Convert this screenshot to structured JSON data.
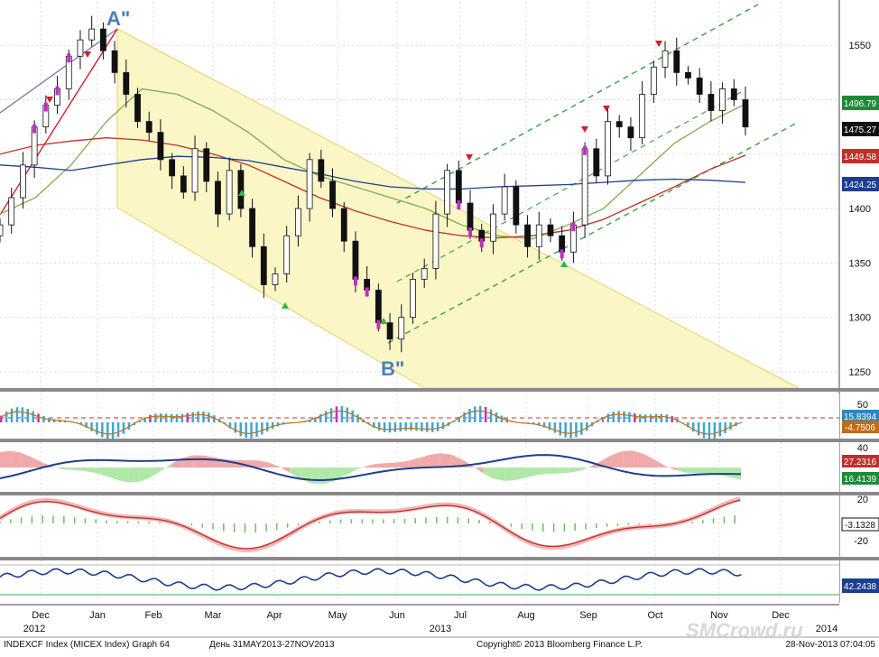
{
  "chart_data": [
    {
      "type": "candlestick",
      "panel": "price",
      "y_ticks": [
        1250,
        1300,
        1350,
        1400,
        1450,
        1500,
        1550
      ],
      "ylim": [
        1235,
        1590
      ],
      "x_month_labels": [
        "Dec",
        "Jan",
        "Feb",
        "Mar",
        "Apr",
        "May",
        "Jun",
        "Jul",
        "Aug",
        "Sep",
        "Oct",
        "Nov",
        "Dec"
      ],
      "x_year_labels": [
        "2012",
        "2013",
        "2014"
      ],
      "series_close": [
        1385,
        1410,
        1440,
        1475,
        1495,
        1510,
        1540,
        1555,
        1565,
        1545,
        1525,
        1505,
        1480,
        1470,
        1445,
        1430,
        1415,
        1455,
        1425,
        1395,
        1435,
        1400,
        1365,
        1330,
        1340,
        1375,
        1400,
        1445,
        1425,
        1400,
        1370,
        1335,
        1325,
        1295,
        1280,
        1300,
        1335,
        1345,
        1395,
        1435,
        1405,
        1380,
        1370,
        1395,
        1420,
        1385,
        1365,
        1385,
        1375,
        1360,
        1385,
        1455,
        1430,
        1480,
        1475,
        1465,
        1505,
        1530,
        1545,
        1525,
        1520,
        1505,
        1490,
        1510,
        1500,
        1475
      ],
      "annotations": [
        {
          "text": "A\"",
          "x_label": "Jan"
        },
        {
          "text": "B\"",
          "x_label": "Jun"
        }
      ],
      "last_value_tags": [
        {
          "value": "1496.79",
          "color": "#1d8a3a"
        },
        {
          "value": "1475.27",
          "color": "#111111"
        },
        {
          "value": "1449.58",
          "color": "#c0302a"
        },
        {
          "value": "1424.25",
          "color": "#1d3f8f"
        }
      ],
      "moving_averages": [
        {
          "color": "#7ab04a",
          "values": [
            1395,
            1410,
            1440,
            1480,
            1510,
            1505,
            1490,
            1470,
            1445,
            1430,
            1420,
            1410,
            1400,
            1385,
            1375,
            1372,
            1385,
            1400,
            1430,
            1460,
            1480,
            1496
          ]
        },
        {
          "color": "#c0302a",
          "values": [
            1450,
            1458,
            1462,
            1465,
            1463,
            1458,
            1450,
            1440,
            1425,
            1410,
            1398,
            1388,
            1380,
            1375,
            1373,
            1375,
            1380,
            1390,
            1405,
            1420,
            1436,
            1449
          ]
        },
        {
          "color": "#1d3f8f",
          "values": [
            1440,
            1438,
            1435,
            1440,
            1445,
            1448,
            1447,
            1444,
            1438,
            1432,
            1425,
            1420,
            1418,
            1418,
            1420,
            1421,
            1422,
            1424,
            1426,
            1427,
            1426,
            1424
          ]
        }
      ]
    },
    {
      "type": "histogram",
      "panel": "indicator-1",
      "y_ticks": [
        50
      ],
      "last_value_tags": [
        {
          "value": "15.8394",
          "color": "#2e86c1"
        },
        {
          "value": "-4.7506",
          "color": "#c06a1a"
        }
      ]
    },
    {
      "type": "area",
      "panel": "indicator-2",
      "y_ticks": [
        40
      ],
      "last_value_tags": [
        {
          "value": "27.2316",
          "color": "#c0302a"
        },
        {
          "value": "16.4139",
          "color": "#1d8a3a"
        }
      ]
    },
    {
      "type": "line",
      "panel": "indicator-3",
      "y_ticks": [
        20,
        -20
      ],
      "last_value_tags": [
        {
          "value": "-3.1328",
          "color": "#111111"
        }
      ]
    },
    {
      "type": "line",
      "panel": "indicator-4",
      "y_ticks": [],
      "last_value_tags": [
        {
          "value": "42.2438",
          "color": "#1d3f8f"
        }
      ]
    }
  ],
  "footer": {
    "ticker": "INDEXCF Index (MICEX Index) Graph 64",
    "period": "День 31MAY2013-27NOV2013",
    "copyright": "Copyright© 2013 Bloomberg Finance L.P.",
    "timestamp": "28-Nov-2013 07:04:05"
  },
  "watermark": "SMCrowd.ru",
  "colors": {
    "channel_fill": "#fbf6c6",
    "channel_line": "#e6d36a",
    "green_channel": "#3fa84a",
    "bull_candle": "#ffffff",
    "bear_candle": "#111111",
    "down_marker": "#d0202a",
    "up_marker": "#2eb84a",
    "magenta": "#c030c0",
    "annotation": "#4a7fc0"
  }
}
